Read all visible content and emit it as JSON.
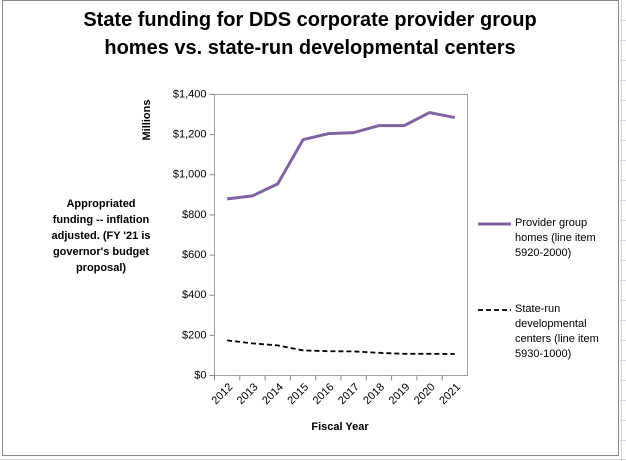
{
  "chart_data": {
    "type": "line",
    "title": "State funding for DDS corporate provider group homes vs. state-run developmental centers",
    "y_axis_label": "Millions",
    "x_axis_label": "Fiscal Year",
    "annotation": "Appropriated funding -- inflation adjusted. (FY '21 is governor's budget proposal)",
    "categories": [
      "2012",
      "2013",
      "2014",
      "2015",
      "2016",
      "2017",
      "2018",
      "2019",
      "2020",
      "2021"
    ],
    "series": [
      {
        "name": "Provider group homes (line item 5920-2000)",
        "color": "#8064a2",
        "dash": false,
        "values": [
          880,
          895,
          955,
          1175,
          1205,
          1210,
          1245,
          1245,
          1310,
          1285
        ]
      },
      {
        "name": "State-run developmental centers (line item 5930-1000)",
        "color": "#000000",
        "dash": true,
        "values": [
          175,
          160,
          150,
          125,
          121,
          120,
          113,
          108,
          108,
          107
        ]
      }
    ],
    "ylim": [
      0,
      1400
    ],
    "yticks": [
      {
        "value": 0,
        "label": "$0"
      },
      {
        "value": 200,
        "label": "$200"
      },
      {
        "value": 400,
        "label": "$400"
      },
      {
        "value": 600,
        "label": "$600"
      },
      {
        "value": 800,
        "label": "$800"
      },
      {
        "value": 1000,
        "label": "$1,000"
      },
      {
        "value": 1200,
        "label": "$1,200"
      },
      {
        "value": 1400,
        "label": "$1,400"
      }
    ],
    "grid": false
  }
}
